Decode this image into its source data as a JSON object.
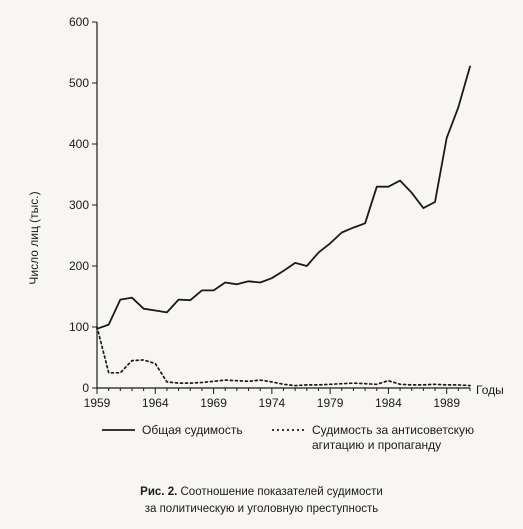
{
  "chart_data": {
    "type": "line",
    "ylabel": "Число лиц (тыс.)",
    "xlabel": "Годы",
    "xlim": [
      1959,
      1991
    ],
    "ylim": [
      0,
      600
    ],
    "xticks": [
      1959,
      1964,
      1969,
      1974,
      1979,
      1984,
      1989
    ],
    "yticks": [
      0,
      100,
      200,
      300,
      400,
      500,
      600
    ],
    "grid": false,
    "legend_position": "bottom",
    "series": [
      {
        "name": "Общая судимость",
        "style": "solid",
        "x": [
          1959,
          1960,
          1961,
          1962,
          1963,
          1964,
          1965,
          1966,
          1967,
          1968,
          1969,
          1970,
          1971,
          1972,
          1973,
          1974,
          1975,
          1976,
          1977,
          1978,
          1979,
          1980,
          1981,
          1982,
          1983,
          1984,
          1985,
          1986,
          1987,
          1988,
          1989,
          1990,
          1991
        ],
        "values": [
          97,
          104,
          145,
          148,
          130,
          127,
          124,
          145,
          144,
          160,
          160,
          173,
          170,
          175,
          173,
          180,
          192,
          205,
          200,
          222,
          237,
          255,
          263,
          270,
          330,
          330,
          340,
          320,
          295,
          305,
          410,
          460,
          527
        ]
      },
      {
        "name": "Судимость за антисоветскую агитацию и пропаганду",
        "style": "dotted",
        "x": [
          1959,
          1960,
          1961,
          1962,
          1963,
          1964,
          1965,
          1966,
          1967,
          1968,
          1969,
          1970,
          1971,
          1972,
          1973,
          1974,
          1975,
          1976,
          1977,
          1978,
          1979,
          1980,
          1981,
          1982,
          1983,
          1984,
          1985,
          1986,
          1987,
          1988,
          1989,
          1990,
          1991
        ],
        "values": [
          100,
          25,
          25,
          45,
          46,
          40,
          10,
          8,
          8,
          9,
          11,
          13,
          12,
          11,
          13,
          10,
          6,
          4,
          5,
          5,
          6,
          7,
          8,
          7,
          6,
          12,
          6,
          5,
          5,
          6,
          5,
          5,
          4
        ]
      }
    ]
  },
  "legend": {
    "solid_label": "Общая судимость",
    "dotted_label_line1": "Судимость за антисоветскую",
    "dotted_label_line2": "агитацию и пропаганду"
  },
  "caption": {
    "figure_number": "Рис. 2.",
    "text_line1": "Соотношение показателей судимости",
    "text_line2": "за политическую и уголовную преступность"
  },
  "colors": {
    "ink": "#1a1a1a",
    "paper": "#f7f6f2"
  }
}
